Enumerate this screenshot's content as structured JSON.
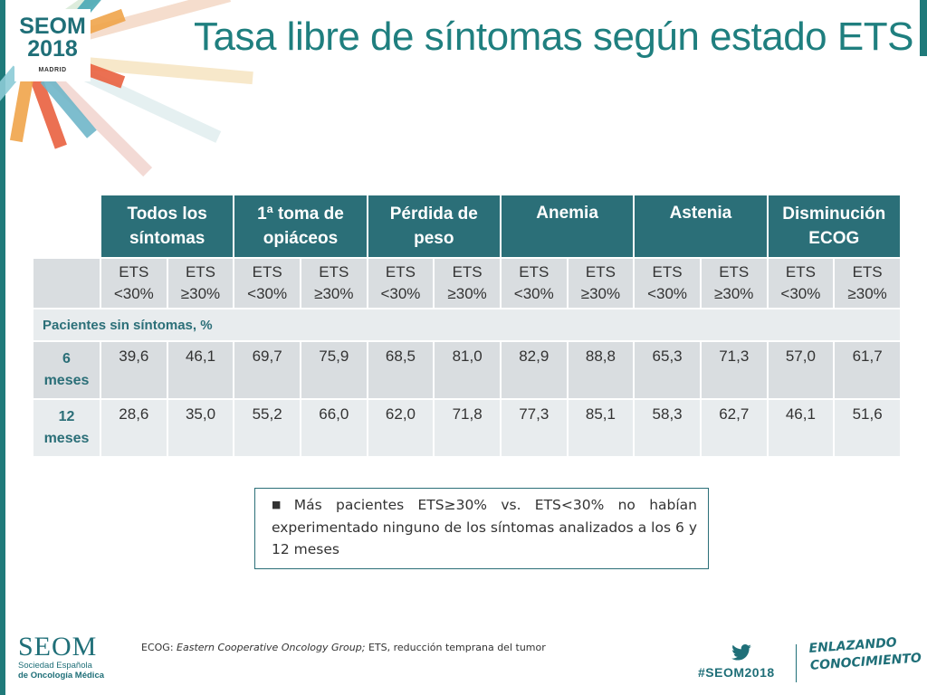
{
  "logo": {
    "brand": "SEOM",
    "year": "2018",
    "city": "MADRID"
  },
  "title": "Tasa libre de síntomas según estado ETS",
  "table": {
    "groups": [
      {
        "line1": "Todos los",
        "line2": "síntomas"
      },
      {
        "line1": "1ª toma de",
        "line2": "opiáceos"
      },
      {
        "line1": "Pérdida de",
        "line2": "peso"
      },
      {
        "line1": "Anemia",
        "line2": ""
      },
      {
        "line1": "Astenia",
        "line2": ""
      },
      {
        "line1": "Disminución",
        "line2": "ECOG"
      }
    ],
    "sub_lt": {
      "line1": "ETS",
      "line2": "<30%"
    },
    "sub_ge": {
      "line1": "ETS",
      "line2": "≥30%"
    },
    "section_label": "Pacientes sin síntomas, %",
    "rows": [
      {
        "label1": "6",
        "label2": "meses",
        "values": [
          "39,6",
          "46,1",
          "69,7",
          "75,9",
          "68,5",
          "81,0",
          "82,9",
          "88,8",
          "65,3",
          "71,3",
          "57,0",
          "61,7"
        ]
      },
      {
        "label1": "12",
        "label2": "meses",
        "values": [
          "28,6",
          "35,0",
          "55,2",
          "66,0",
          "62,0",
          "71,8",
          "77,3",
          "85,1",
          "58,3",
          "62,7",
          "46,1",
          "51,6"
        ]
      }
    ]
  },
  "note": "Más pacientes ETS≥30% vs. ETS<30% no habían experimentado ninguno de los síntomas analizados a los 6 y 12 meses",
  "footer": {
    "logo_text": "SEOM",
    "logo_sub1": "Sociedad Española",
    "logo_sub2": "de Oncología Médica",
    "footnote_term": "ECOG:",
    "footnote_italic": "Eastern Cooperative Oncology Group;",
    "footnote_rest": "ETS, reducción temprana del tumor",
    "hashtag": "#SEOM2018",
    "slogan1": "ENLAZANDO",
    "slogan2": "CONOCIMIENTO"
  },
  "colors": {
    "teal": "#2b6f78",
    "title": "#1f7f7f",
    "light_gray": "#d9dde0",
    "lighter_gray": "#e8ecee"
  },
  "icons": [
    "twitter-icon"
  ]
}
